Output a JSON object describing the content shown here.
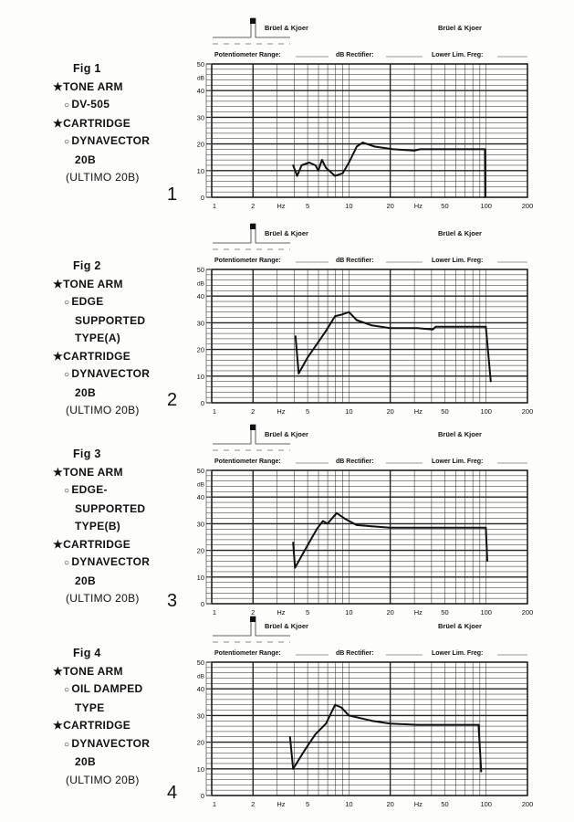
{
  "form": {
    "brand_left": "Brüel & Kjoer",
    "brand_right": "Brüel & Kjoer",
    "potentiometer_label": "Potentiometer Range:",
    "rectifier_label": "dB Rectifier:",
    "lower_lim_label": "Lower Lim. Freg:",
    "db_unit": "dB",
    "hz_unit": "Hz"
  },
  "figures": [
    {
      "fig_label": "Fig 1",
      "number": "1",
      "lines": [
        {
          "marker": "★",
          "text": "TONE ARM",
          "indent": 0
        },
        {
          "marker": "○",
          "text": "DV-505",
          "indent": 1
        },
        {
          "marker": "★",
          "text": "CARTRIDGE",
          "indent": 0
        },
        {
          "marker": "○",
          "text": "DYNAVECTOR",
          "indent": 1
        },
        {
          "marker": "",
          "text": "20B",
          "indent": 2
        },
        {
          "marker": "",
          "text": "(ULTIMO 20B)",
          "indent": 3
        }
      ]
    },
    {
      "fig_label": "Fig 2",
      "number": "2",
      "lines": [
        {
          "marker": "★",
          "text": "TONE ARM",
          "indent": 0
        },
        {
          "marker": "○",
          "text": "EDGE",
          "indent": 1
        },
        {
          "marker": "",
          "text": "SUPPORTED",
          "indent": 2
        },
        {
          "marker": "",
          "text": "TYPE(A)",
          "indent": 2
        },
        {
          "marker": "★",
          "text": "CARTRIDGE",
          "indent": 0
        },
        {
          "marker": "○",
          "text": "DYNAVECTOR",
          "indent": 1
        },
        {
          "marker": "",
          "text": "20B",
          "indent": 2
        },
        {
          "marker": "",
          "text": "(ULTIMO 20B)",
          "indent": 3
        }
      ]
    },
    {
      "fig_label": "Fig 3",
      "number": "3",
      "lines": [
        {
          "marker": "★",
          "text": "TONE ARM",
          "indent": 0
        },
        {
          "marker": "○",
          "text": "EDGE-",
          "indent": 1
        },
        {
          "marker": "",
          "text": "SUPPORTED",
          "indent": 2
        },
        {
          "marker": "",
          "text": "TYPE(B)",
          "indent": 2
        },
        {
          "marker": "★",
          "text": "CARTRIDGE",
          "indent": 0
        },
        {
          "marker": "○",
          "text": "DYNAVECTOR",
          "indent": 1
        },
        {
          "marker": "",
          "text": "20B",
          "indent": 2
        },
        {
          "marker": "",
          "text": "(ULTIMO 20B)",
          "indent": 3
        }
      ]
    },
    {
      "fig_label": "Fig 4",
      "number": "4",
      "lines": [
        {
          "marker": "★",
          "text": "TONE ARM",
          "indent": 0
        },
        {
          "marker": "○",
          "text": "OIL DAMPED",
          "indent": 1
        },
        {
          "marker": "",
          "text": "TYPE",
          "indent": 2
        },
        {
          "marker": "★",
          "text": "CARTRIDGE",
          "indent": 0
        },
        {
          "marker": "○",
          "text": "DYNAVECTOR",
          "indent": 1
        },
        {
          "marker": "",
          "text": "20B",
          "indent": 2
        },
        {
          "marker": "",
          "text": "(ULTIMO 20B)",
          "indent": 3
        }
      ]
    }
  ],
  "chart_data": [
    {
      "type": "line",
      "title": "Fig 1",
      "xlabel": "Hz",
      "ylabel": "dB",
      "xscale": "log",
      "xlim": [
        1,
        200
      ],
      "ylim": [
        0,
        50
      ],
      "xticks": [
        "1",
        "2",
        "Hz",
        "5",
        "10",
        "20",
        "Hz",
        "50",
        "100",
        "200"
      ],
      "yticks": [
        "0",
        "10",
        "20",
        "30",
        "40",
        "50"
      ],
      "grid": true,
      "series": [
        {
          "name": "response",
          "x": [
            3.92,
            4.19,
            4.52,
            5.14,
            5.7,
            5.98,
            6.36,
            6.81,
            7.93,
            9.0,
            10.0,
            11.4,
            12.6,
            15.4,
            21,
            30,
            33,
            98,
            98.5
          ],
          "y": [
            12,
            8,
            12,
            13,
            12,
            10,
            14,
            11,
            8,
            9,
            13,
            19,
            20.5,
            19,
            18,
            17.5,
            18,
            18,
            0
          ]
        }
      ]
    },
    {
      "type": "line",
      "title": "Fig 2",
      "xlabel": "Hz",
      "ylabel": "dB",
      "xscale": "log",
      "xlim": [
        1,
        200
      ],
      "ylim": [
        0,
        50
      ],
      "xticks": [
        "1",
        "2",
        "Hz",
        "5",
        "10",
        "20",
        "Hz",
        "50",
        "100",
        "200"
      ],
      "yticks": [
        "0",
        "10",
        "20",
        "30",
        "40",
        "50"
      ],
      "grid": true,
      "series": [
        {
          "name": "response",
          "x": [
            4.08,
            4.3,
            5.0,
            5.84,
            6.81,
            7.93,
            8.8,
            10,
            11.4,
            14.7,
            19.9,
            31.6,
            40.8,
            42.9,
            99.5,
            108
          ],
          "y": [
            25,
            11,
            17,
            22,
            27,
            32.5,
            33,
            34,
            31,
            29,
            28,
            28,
            27.5,
            28.5,
            28.5,
            8
          ]
        }
      ]
    },
    {
      "type": "line",
      "title": "Fig 3",
      "xlabel": "Hz",
      "ylabel": "dB",
      "xscale": "log",
      "xlim": [
        1,
        200
      ],
      "ylim": [
        0,
        50
      ],
      "xticks": [
        "1",
        "2",
        "Hz",
        "5",
        "10",
        "20",
        "Hz",
        "50",
        "100",
        "200"
      ],
      "yticks": [
        "0",
        "10",
        "20",
        "30",
        "40",
        "50"
      ],
      "grid": true,
      "series": [
        {
          "name": "response",
          "x": [
            3.92,
            4.05,
            4.76,
            5.84,
            6.46,
            6.98,
            8.14,
            9.25,
            11.4,
            14.7,
            19.9,
            50,
            99.5,
            102
          ],
          "y": [
            23,
            13.5,
            20,
            28,
            31,
            30,
            34,
            32,
            29.5,
            29,
            28.5,
            28.5,
            28.5,
            16
          ]
        }
      ]
    },
    {
      "type": "line",
      "title": "Fig 4",
      "xlabel": "Hz",
      "ylabel": "dB",
      "xscale": "log",
      "xlim": [
        1,
        200
      ],
      "ylim": [
        0,
        50
      ],
      "xticks": [
        "1",
        "2",
        "Hz",
        "5",
        "10",
        "20",
        "Hz",
        "50",
        "100",
        "200"
      ],
      "yticks": [
        "0",
        "10",
        "20",
        "30",
        "40",
        "50"
      ],
      "grid": true,
      "series": [
        {
          "name": "response",
          "x": [
            3.72,
            3.92,
            4.76,
            5.7,
            6.81,
            7.93,
            8.8,
            10,
            14.7,
            19.9,
            31.6,
            88,
            92
          ],
          "y": [
            22,
            10,
            17,
            23,
            27,
            34,
            33,
            30,
            28,
            27,
            26.5,
            26.5,
            9
          ]
        }
      ]
    }
  ]
}
